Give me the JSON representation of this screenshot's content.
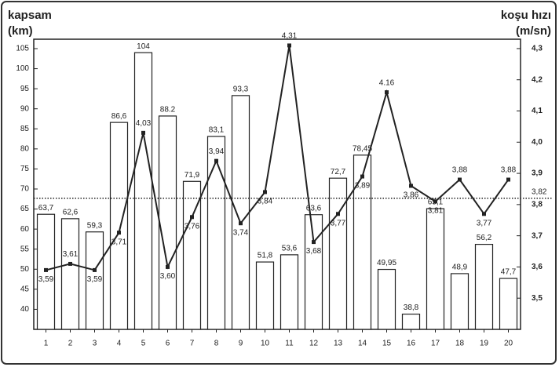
{
  "chart_data": {
    "type": "bar+line",
    "y_label": [
      "kapsam",
      "(km)"
    ],
    "y2_label": [
      "koşu hızı",
      "(m/sn)"
    ],
    "categories": [
      "1",
      "2",
      "3",
      "4",
      "5",
      "6",
      "7",
      "8",
      "9",
      "10",
      "11",
      "12",
      "13",
      "14",
      "15",
      "16",
      "17",
      "18",
      "19",
      "20"
    ],
    "series": [
      {
        "type": "bar",
        "color": "#ffffff",
        "values": [
          63.7,
          62.6,
          59.3,
          86.6,
          104,
          88.2,
          71.9,
          83.1,
          93.3,
          51.8,
          53.6,
          63.6,
          72.7,
          78.45,
          49.95,
          38.8,
          65.1,
          48.9,
          56.2,
          47.7
        ],
        "value_labels": [
          "63,7",
          "62,6",
          "59,3",
          "86,6",
          "104",
          "88.2",
          "71,9",
          "83,1",
          "93,3",
          "51,8",
          "53,6",
          "63,6",
          "72,7",
          "78,45",
          "49,95",
          "38,8",
          "65,1",
          "48,9",
          "56,2",
          "47,7"
        ]
      },
      {
        "type": "line",
        "axis": "y2",
        "color": "#222222",
        "values": [
          3.59,
          3.61,
          3.59,
          3.71,
          4.03,
          3.6,
          3.76,
          3.94,
          3.74,
          3.84,
          4.31,
          3.68,
          3.77,
          3.89,
          4.16,
          3.86,
          3.81,
          3.88,
          3.77,
          3.88
        ],
        "value_labels": [
          "3,59",
          "3,61",
          "3,59",
          "3,71",
          "4,03",
          "3,60",
          "3,76",
          "3,94",
          "3,74",
          "3,84",
          "4,31",
          "3,68",
          "3,77",
          "3,89",
          "4.16",
          "3,86",
          "3,81",
          "3,88",
          "3,77",
          "3,88"
        ]
      }
    ],
    "ylim": [
      35,
      107.35
    ],
    "yticks": [
      40,
      45,
      50,
      55,
      60,
      65,
      70,
      75,
      80,
      85,
      90,
      95,
      100,
      105
    ],
    "y2lim": [
      3.4,
      4.33
    ],
    "y2ticks": [
      {
        "value": 3.5,
        "label": "3,5"
      },
      {
        "value": 3.6,
        "label": "3,6"
      },
      {
        "value": 3.7,
        "label": "3,7"
      },
      {
        "value": 3.8,
        "label": "3,8"
      },
      {
        "value": 3.9,
        "label": "3,9"
      },
      {
        "value": 4.0,
        "label": "4,0"
      },
      {
        "value": 4.1,
        "label": "4,1"
      },
      {
        "value": 4.2,
        "label": "4,2"
      },
      {
        "value": 4.3,
        "label": "4,3"
      }
    ],
    "reference_line": {
      "axis": "y2",
      "value": 3.82,
      "label": "3,82"
    }
  }
}
